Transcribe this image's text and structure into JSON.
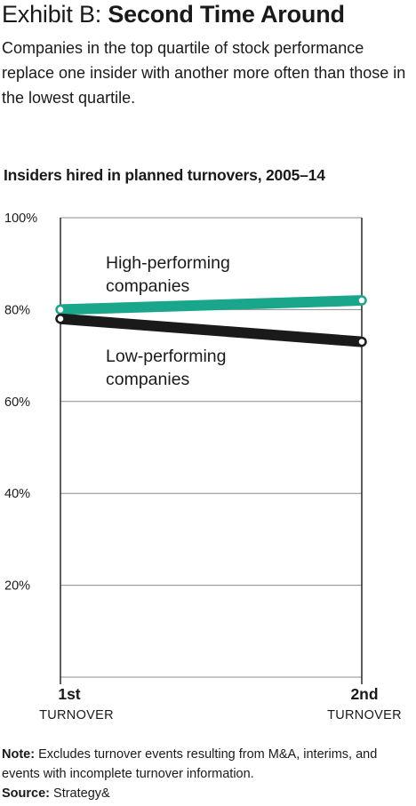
{
  "header": {
    "exhibit_prefix": "Exhibit B: ",
    "title": "Second Time Around",
    "subtitle": "Companies in the top quartile of stock performance replace one insider with another more often than those in the lowest quartile."
  },
  "chart_data": {
    "type": "line",
    "title": "Insiders hired in planned turnovers, 2005–14",
    "x_categories": [
      {
        "main": "1st",
        "sub": "TURNOVER"
      },
      {
        "main": "2nd",
        "sub": "TURNOVER"
      }
    ],
    "y_ticks": [
      "100%",
      "80%",
      "60%",
      "40%",
      "20%"
    ],
    "y_tick_values": [
      100,
      80,
      60,
      40,
      20
    ],
    "ylim": [
      0,
      100
    ],
    "grid": true,
    "series": [
      {
        "name_lines": [
          "High-performing",
          "companies"
        ],
        "values": [
          80,
          82
        ],
        "color": "#1aa68a"
      },
      {
        "name_lines": [
          "Low-performing",
          "companies"
        ],
        "values": [
          78,
          73
        ],
        "color": "#1a1a1a"
      }
    ]
  },
  "footer": {
    "note_label": "Note:",
    "note_text": " Excludes turnover events resulting from M&A, interims, and events with incomplete turnover information.",
    "source_label": "Source:",
    "source_text": " Strategy&"
  }
}
